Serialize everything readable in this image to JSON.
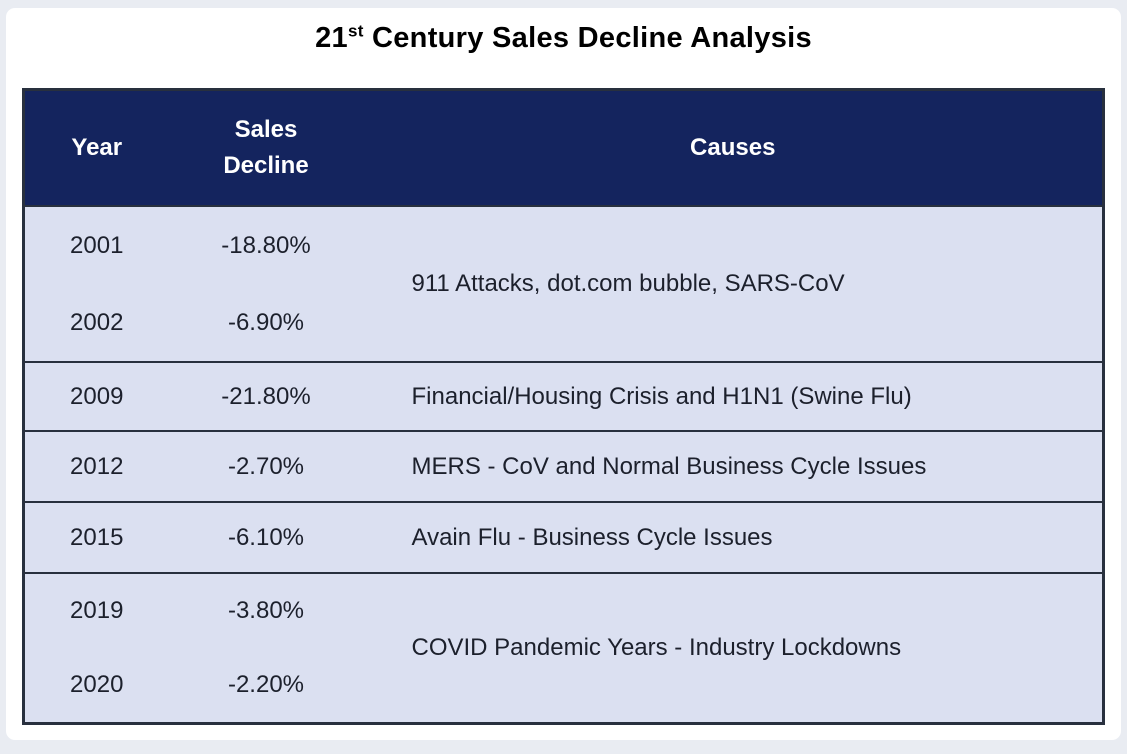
{
  "title": {
    "prefix": "21",
    "superscript": "st",
    "rest": " Century Sales Decline Analysis"
  },
  "colors": {
    "page_background": "#e9ecf2",
    "card_background": "#ffffff",
    "header_background": "#14245e",
    "header_text": "#ffffff",
    "row_background": "#dbe0f1",
    "body_text": "#1c202c",
    "border": "#28303e",
    "title_text": "#000000"
  },
  "chart_data": {
    "type": "table",
    "title": "21st Century Sales Decline Analysis",
    "columns": [
      "Year",
      "Sales Decline",
      "Causes"
    ],
    "groups": [
      {
        "rows": [
          {
            "year": "2001",
            "decline": "-18.80%"
          },
          {
            "year": "2002",
            "decline": "-6.90%"
          }
        ],
        "cause": "911 Attacks, dot.com bubble, SARS-CoV"
      },
      {
        "rows": [
          {
            "year": "2009",
            "decline": "-21.80%"
          }
        ],
        "cause": "Financial/Housing Crisis and H1N1 (Swine Flu)"
      },
      {
        "rows": [
          {
            "year": "2012",
            "decline": "-2.70%"
          }
        ],
        "cause": "MERS - CoV and Normal Business Cycle Issues"
      },
      {
        "rows": [
          {
            "year": "2015",
            "decline": "-6.10%"
          }
        ],
        "cause": "Avain Flu - Business Cycle Issues"
      },
      {
        "rows": [
          {
            "year": "2019",
            "decline": "-3.80%"
          },
          {
            "year": "2020",
            "decline": "-2.20%"
          }
        ],
        "cause": "COVID Pandemic Years - Industry Lockdowns"
      }
    ]
  }
}
